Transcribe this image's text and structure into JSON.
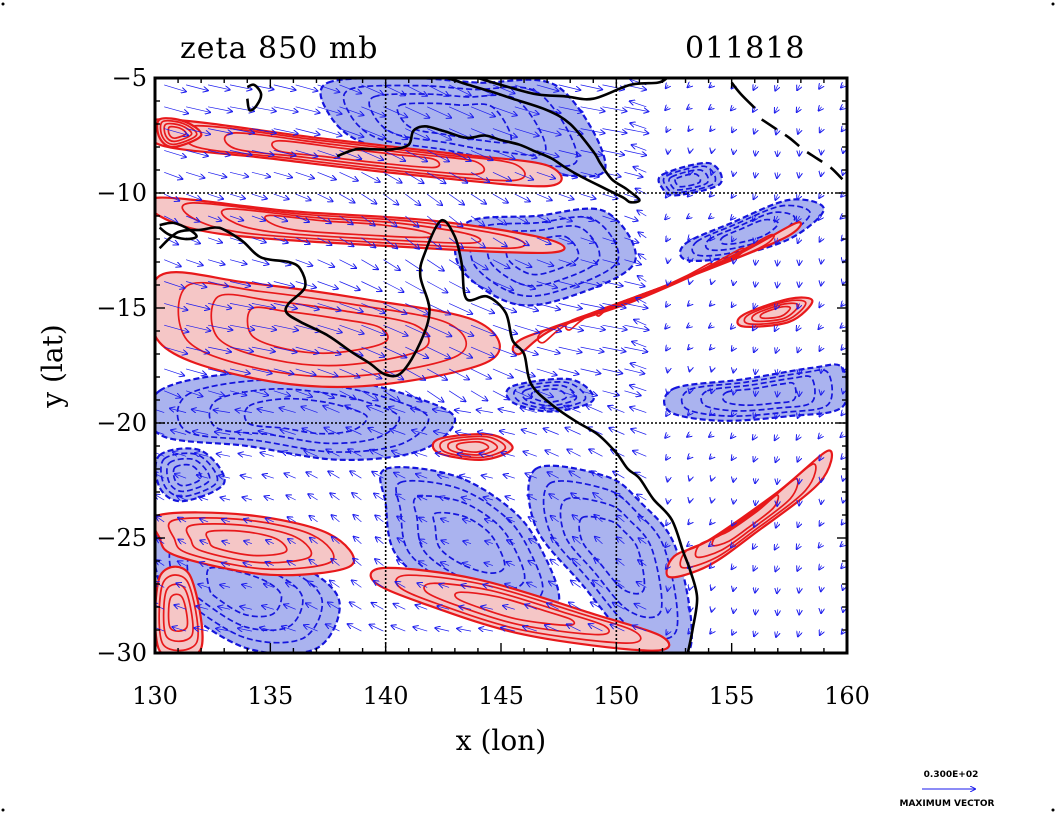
{
  "chart_data": {
    "type": "contour",
    "title_left": "zeta 850 mb",
    "title_right": "011818",
    "xlabel": "x (lon)",
    "ylabel": "y (lat)",
    "xlim": [
      130,
      160
    ],
    "ylim": [
      -30,
      -5
    ],
    "x_ticks": [
      130,
      135,
      140,
      145,
      150,
      155,
      160
    ],
    "y_ticks": [
      -5,
      -10,
      -15,
      -20,
      -25,
      -30
    ],
    "x_tick_labels": [
      "130",
      "135",
      "140",
      "145",
      "150",
      "155",
      "160"
    ],
    "y_tick_labels": [
      "−5",
      "−10",
      "−15",
      "−20",
      "−25",
      "−30"
    ],
    "gridlines_lon": [
      140,
      150
    ],
    "gridlines_lat": [
      -10,
      -20
    ],
    "colors": {
      "positive_fill": "#f5c6c6",
      "positive_contour": "#e8191b",
      "negative_fill": "#aab3ef",
      "negative_contour": "#1515dd",
      "coastline": "#000000",
      "vector": "#1a1aee"
    },
    "positive_regions": [
      {
        "lon": [
          130.2,
          134.0,
          139.0,
          144.0,
          144.5,
          139.0,
          134.0,
          130.2
        ],
        "lat": [
          -13.6,
          -13.9,
          -14.6,
          -15.6,
          -17.3,
          -18.4,
          -18.0,
          -16.5
        ]
      },
      {
        "lon": [
          130.2,
          137.0,
          143.0,
          147.0,
          147.0,
          141.0,
          135.0,
          130.2
        ],
        "lat": [
          -6.8,
          -7.6,
          -8.3,
          -8.8,
          -9.7,
          -9.2,
          -8.5,
          -7.9
        ]
      },
      {
        "lon": [
          130.2,
          136.0,
          142.0,
          147.0,
          147.0,
          140.0,
          133.0,
          130.2
        ],
        "lat": [
          -10.2,
          -10.8,
          -11.2,
          -12.0,
          -12.6,
          -12.3,
          -11.8,
          -11.0
        ]
      },
      {
        "lon": [
          146.0,
          150.5,
          155.0,
          157.8,
          157.2,
          152.5,
          147.5,
          145.8
        ],
        "lat": [
          -16.3,
          -14.8,
          -12.8,
          -11.3,
          -12.0,
          -13.9,
          -15.8,
          -17.0
        ]
      },
      {
        "lon": [
          140.0,
          144.0,
          149.0,
          152.0,
          151.5,
          146.0,
          141.5,
          139.5
        ],
        "lat": [
          -26.3,
          -26.8,
          -28.3,
          -29.3,
          -29.9,
          -29.2,
          -27.8,
          -26.9
        ]
      },
      {
        "lon": [
          130.2,
          134.0,
          137.5,
          138.5,
          135.0,
          131.0,
          130.2
        ],
        "lat": [
          -24.0,
          -24.0,
          -24.8,
          -26.2,
          -26.6,
          -25.8,
          -25.0
        ]
      },
      {
        "lon": [
          152.5,
          154.0,
          157.0,
          159.2,
          158.8,
          156.0,
          154.0,
          152.3
        ],
        "lat": [
          -25.8,
          -25.1,
          -23.0,
          -21.2,
          -22.6,
          -24.8,
          -26.2,
          -26.7
        ]
      },
      {
        "lon": [
          155.5,
          157.5,
          158.5,
          157.5,
          155.5
        ],
        "lat": [
          -15.3,
          -14.6,
          -14.7,
          -15.6,
          -15.8
        ]
      },
      {
        "lon": [
          142.3,
          144.5,
          145.5,
          144.2,
          142.3
        ],
        "lat": [
          -20.7,
          -20.5,
          -21.1,
          -21.6,
          -21.3
        ]
      },
      {
        "lon": [
          130.2,
          131.5,
          132.0,
          130.2
        ],
        "lat": [
          -26.7,
          -26.6,
          -29.8,
          -29.9
        ]
      },
      {
        "lon": [
          130.2,
          131.3,
          132.0,
          130.8,
          130.2
        ],
        "lat": [
          -6.8,
          -6.9,
          -7.5,
          -8.0,
          -7.6
        ]
      }
    ],
    "negative_regions": [
      {
        "lon": [
          137.5,
          141.0,
          144.0,
          147.5,
          149.5,
          146.0,
          142.5,
          139.0,
          137.5
        ],
        "lat": [
          -5.2,
          -5.0,
          -5.2,
          -5.4,
          -9.0,
          -9.0,
          -8.4,
          -7.8,
          -6.5
        ]
      },
      {
        "lon": [
          143.5,
          146.5,
          149.5,
          150.8,
          148.0,
          145.5,
          143.2
        ],
        "lat": [
          -11.3,
          -11.0,
          -10.8,
          -13.0,
          -14.5,
          -14.8,
          -13.2
        ]
      },
      {
        "lon": [
          130.2,
          134.0,
          138.0,
          141.0,
          143.0,
          141.5,
          138.0,
          134.0,
          130.2
        ],
        "lat": [
          -18.6,
          -17.8,
          -18.1,
          -18.8,
          -19.8,
          -21.2,
          -21.6,
          -21.0,
          -20.5
        ]
      },
      {
        "lon": [
          140.0,
          143.0,
          145.5,
          146.8,
          147.5,
          146.0,
          143.0,
          140.5,
          140.0
        ],
        "lat": [
          -22.0,
          -22.3,
          -23.8,
          -25.6,
          -27.8,
          -28.5,
          -27.6,
          -25.8,
          -23.5
        ]
      },
      {
        "lon": [
          146.5,
          149.5,
          151.0,
          152.6,
          153.2,
          151.0,
          148.5,
          146.5
        ],
        "lat": [
          -22.0,
          -22.3,
          -23.4,
          -25.5,
          -29.8,
          -29.8,
          -27.0,
          -24.5
        ]
      },
      {
        "lon": [
          130.2,
          133.5,
          136.5,
          138.0,
          137.0,
          134.0,
          131.0,
          130.2
        ],
        "lat": [
          -24.8,
          -25.2,
          -26.3,
          -27.8,
          -29.8,
          -29.8,
          -28.0,
          -27.0
        ]
      },
      {
        "lon": [
          152.5,
          155.5,
          158.5,
          159.8,
          159.8,
          157.5,
          154.5,
          152.3
        ],
        "lat": [
          -18.5,
          -18.1,
          -17.6,
          -17.6,
          -19.3,
          -19.7,
          -19.9,
          -19.5
        ]
      },
      {
        "lon": [
          153.0,
          155.0,
          157.5,
          159.0,
          157.5,
          154.8,
          153.0
        ],
        "lat": [
          -12.2,
          -11.3,
          -10.3,
          -10.7,
          -12.0,
          -12.8,
          -12.9
        ]
      },
      {
        "lon": [
          130.2,
          132.0,
          133.0,
          131.2,
          130.2
        ],
        "lat": [
          -21.4,
          -21.2,
          -22.6,
          -23.4,
          -22.8
        ]
      },
      {
        "lon": [
          145.5,
          148.0,
          149.0,
          147.2,
          145.5
        ],
        "lat": [
          -18.4,
          -18.1,
          -19.0,
          -19.5,
          -19.1
        ]
      },
      {
        "lon": [
          152.0,
          154.0,
          154.5,
          152.6,
          152.0
        ],
        "lat": [
          -9.2,
          -8.7,
          -9.6,
          -10.1,
          -9.8
        ]
      }
    ],
    "coastlines": [
      {
        "lon": [
          130.2,
          131.0,
          132.0,
          132.6,
          133.0,
          133.8,
          134.6,
          135.8,
          136.3,
          136.5,
          135.8,
          135.7,
          136.3,
          137.5,
          138.5,
          139.3,
          140.0,
          140.7,
          141.5,
          141.9,
          141.5,
          141.7,
          142.4,
          143.0,
          143.3,
          143.5,
          144.4,
          145.2,
          145.5,
          146.0,
          146.3,
          147.2,
          148.2,
          149.2,
          150.0,
          150.5,
          151.0,
          151.6,
          152.4,
          152.9,
          153.2,
          153.5,
          153.3,
          153.1
        ],
        "lat": [
          -12.4,
          -11.7,
          -11.6,
          -11.5,
          -11.6,
          -12.1,
          -12.8,
          -13.0,
          -13.3,
          -14.1,
          -14.8,
          -15.2,
          -15.6,
          -16.2,
          -16.9,
          -17.4,
          -17.9,
          -17.8,
          -16.5,
          -15.1,
          -13.6,
          -12.6,
          -11.2,
          -11.9,
          -13.1,
          -14.6,
          -14.5,
          -15.2,
          -16.4,
          -17.0,
          -18.3,
          -19.2,
          -19.9,
          -20.5,
          -21.3,
          -22.0,
          -22.4,
          -23.3,
          -24.2,
          -25.6,
          -26.4,
          -27.6,
          -29.0,
          -30.0
        ]
      },
      {
        "lon": [
          137.9,
          138.7,
          139.5,
          140.3,
          141.0,
          141.2,
          141.7,
          142.5,
          143.5,
          144.3,
          145.0,
          145.8,
          146.5,
          147.2,
          147.8,
          148.5,
          149.5,
          150.3,
          150.6,
          151.0,
          150.4,
          149.8,
          149.3,
          149.0,
          148.0,
          147.0,
          145.5,
          144.6,
          143.6,
          142.6,
          141.8,
          141.0,
          140.3,
          139.0,
          138.2,
          137.9
        ],
        "lat": [
          -8.4,
          -8.1,
          -8.1,
          -8.1,
          -7.9,
          -7.3,
          -7.1,
          -7.3,
          -7.6,
          -7.5,
          -7.7,
          -7.9,
          -8.2,
          -8.5,
          -8.9,
          -9.3,
          -9.8,
          -10.2,
          -10.4,
          -10.3,
          -9.8,
          -9.4,
          -8.7,
          -8.2,
          -7.0,
          -6.4,
          -5.9,
          -5.6,
          -5.3,
          -5.0,
          -5.0,
          -5.0,
          -5.0,
          -5.0,
          -5.0,
          -5.0
        ]
      },
      {
        "lon": [
          130.2,
          130.8,
          131.5,
          131.8,
          131.3,
          130.6,
          130.2
        ],
        "lat": [
          -11.4,
          -11.3,
          -11.6,
          -11.9,
          -12.0,
          -11.8,
          -11.5
        ]
      },
      {
        "lon": [
          134.0,
          134.3,
          134.6,
          134.4,
          134.1,
          134.0
        ],
        "lat": [
          -5.4,
          -5.3,
          -5.7,
          -6.2,
          -6.4,
          -5.9
        ]
      },
      {
        "lon": [
          144.0,
          145.0,
          146.5,
          147.8,
          149.0,
          150.6,
          151.8,
          152.2
        ],
        "lat": [
          -5.0,
          -5.3,
          -5.7,
          -5.8,
          -5.9,
          -5.3,
          -5.2,
          -5.0
        ]
      },
      {
        "lon": [
          155.0,
          155.4,
          156.0
        ],
        "lat": [
          -5.2,
          -5.7,
          -6.3
        ]
      }
    ],
    "dashed_coast": [
      {
        "lon": [
          156.3,
          156.9,
          157.5,
          158.1,
          158.7,
          159.3,
          159.8
        ],
        "lat": [
          -6.8,
          -7.2,
          -7.6,
          -8.1,
          -8.5,
          -8.9,
          -9.4
        ]
      }
    ],
    "legend": {
      "value": "0.300E+02",
      "caption": "MAXIMUM VECTOR"
    }
  }
}
